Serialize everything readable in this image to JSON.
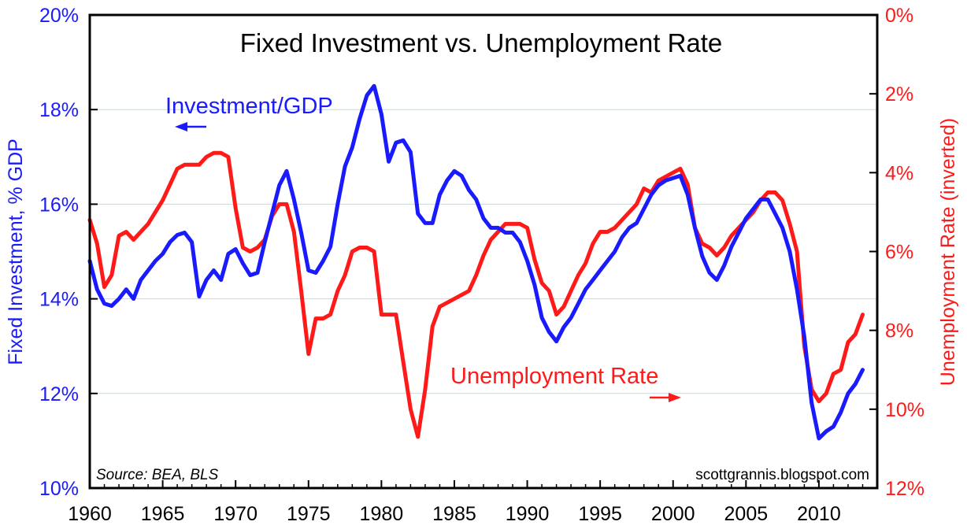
{
  "chart_data": {
    "type": "line",
    "title": "Fixed Investment vs. Unemployment Rate",
    "ylabel_left": "Fixed Investment, % GDP",
    "ylabel_right": "Unemployment Rate (inverted)",
    "xlabel": "",
    "source": "Source: BEA, BLS",
    "credit": "scottgrannis.blogspot.com",
    "xlim": [
      1960,
      2014
    ],
    "ylim_left": [
      10,
      20
    ],
    "ylim_right": [
      0,
      12
    ],
    "right_axis_inverted": true,
    "grid": true,
    "x_ticks": [
      "1960",
      "1965",
      "1970",
      "1975",
      "1980",
      "1985",
      "1990",
      "1995",
      "2000",
      "2005",
      "2010"
    ],
    "x_tick_values": [
      1960,
      1965,
      1970,
      1975,
      1980,
      1985,
      1990,
      1995,
      2000,
      2005,
      2010
    ],
    "y_ticks_left": [
      "10%",
      "12%",
      "14%",
      "16%",
      "18%",
      "20%"
    ],
    "y_tick_values_left": [
      10,
      12,
      14,
      16,
      18,
      20
    ],
    "y_ticks_right": [
      "0%",
      "2%",
      "4%",
      "6%",
      "8%",
      "10%",
      "12%"
    ],
    "y_tick_values_right": [
      0,
      2,
      4,
      6,
      8,
      10,
      12
    ],
    "colors": {
      "investment": "#1a1aff",
      "unemployment": "#ff1a1a",
      "grid": "#b8dde6",
      "frame": "#000000"
    },
    "series": [
      {
        "name": "Investment/GDP",
        "label": "Investment/GDP",
        "axis": "left",
        "arrow": "left",
        "x": [
          1960,
          1960.5,
          1961,
          1961.5,
          1962,
          1962.5,
          1963,
          1963.5,
          1964,
          1964.5,
          1965,
          1965.5,
          1966,
          1966.5,
          1967,
          1967.5,
          1968,
          1968.5,
          1969,
          1969.5,
          1970,
          1970.5,
          1971,
          1971.5,
          1972,
          1972.5,
          1973,
          1973.5,
          1974,
          1974.5,
          1975,
          1975.5,
          1976,
          1976.5,
          1977,
          1977.5,
          1978,
          1978.5,
          1979,
          1979.5,
          1980,
          1980.5,
          1981,
          1981.5,
          1982,
          1982.5,
          1983,
          1983.5,
          1984,
          1984.5,
          1985,
          1985.5,
          1986,
          1986.5,
          1987,
          1987.5,
          1988,
          1988.5,
          1989,
          1989.5,
          1990,
          1990.5,
          1991,
          1991.5,
          1992,
          1992.5,
          1993,
          1993.5,
          1994,
          1994.5,
          1995,
          1995.5,
          1996,
          1996.5,
          1997,
          1997.5,
          1998,
          1998.5,
          1999,
          1999.5,
          2000,
          2000.5,
          2001,
          2001.5,
          2002,
          2002.5,
          2003,
          2003.5,
          2004,
          2004.5,
          2005,
          2005.5,
          2006,
          2006.5,
          2007,
          2007.5,
          2008,
          2008.5,
          2009,
          2009.5,
          2010,
          2010.5,
          2011,
          2011.5,
          2012,
          2012.5,
          2013
        ],
        "values": [
          14.8,
          14.2,
          13.9,
          13.85,
          14.0,
          14.2,
          14.0,
          14.4,
          14.6,
          14.8,
          14.95,
          15.2,
          15.35,
          15.4,
          15.2,
          14.05,
          14.4,
          14.6,
          14.4,
          14.95,
          15.05,
          14.75,
          14.5,
          14.55,
          15.2,
          15.8,
          16.4,
          16.7,
          16.1,
          15.4,
          14.6,
          14.55,
          14.8,
          15.1,
          16.0,
          16.8,
          17.2,
          17.8,
          18.3,
          18.5,
          17.9,
          16.9,
          17.3,
          17.35,
          17.1,
          15.8,
          15.6,
          15.6,
          16.2,
          16.5,
          16.7,
          16.6,
          16.3,
          16.1,
          15.7,
          15.5,
          15.5,
          15.4,
          15.4,
          15.2,
          14.8,
          14.3,
          13.6,
          13.3,
          13.1,
          13.4,
          13.6,
          13.9,
          14.2,
          14.4,
          14.6,
          14.8,
          15.0,
          15.3,
          15.5,
          15.6,
          15.9,
          16.2,
          16.4,
          16.5,
          16.55,
          16.6,
          16.2,
          15.5,
          14.9,
          14.55,
          14.4,
          14.7,
          15.1,
          15.4,
          15.7,
          15.9,
          16.1,
          16.1,
          15.8,
          15.5,
          15.0,
          14.2,
          13.2,
          11.8,
          11.05,
          11.2,
          11.3,
          11.6,
          12.0,
          12.2,
          12.5
        ]
      },
      {
        "name": "Unemployment Rate",
        "label": "Unemployment Rate",
        "axis": "right",
        "arrow": "right",
        "x": [
          1960,
          1960.5,
          1961,
          1961.5,
          1962,
          1962.5,
          1963,
          1963.5,
          1964,
          1964.5,
          1965,
          1965.5,
          1966,
          1966.5,
          1967,
          1967.5,
          1968,
          1968.5,
          1969,
          1969.5,
          1970,
          1970.5,
          1971,
          1971.5,
          1972,
          1972.5,
          1973,
          1973.5,
          1974,
          1974.5,
          1975,
          1975.5,
          1976,
          1976.5,
          1977,
          1977.5,
          1978,
          1978.5,
          1979,
          1979.5,
          1980,
          1980.5,
          1981,
          1981.5,
          1982,
          1982.5,
          1983,
          1983.5,
          1984,
          1984.5,
          1985,
          1985.5,
          1986,
          1986.5,
          1987,
          1987.5,
          1988,
          1988.5,
          1989,
          1989.5,
          1990,
          1990.5,
          1991,
          1991.5,
          1992,
          1992.5,
          1993,
          1993.5,
          1994,
          1994.5,
          1995,
          1995.5,
          1996,
          1996.5,
          1997,
          1997.5,
          1998,
          1998.5,
          1999,
          1999.5,
          2000,
          2000.5,
          2001,
          2001.5,
          2002,
          2002.5,
          2003,
          2003.5,
          2004,
          2004.5,
          2005,
          2005.5,
          2006,
          2006.5,
          2007,
          2007.5,
          2008,
          2008.5,
          2009,
          2009.5,
          2010,
          2010.5,
          2011,
          2011.5,
          2012,
          2012.5,
          2013
        ],
        "values": [
          5.2,
          5.8,
          6.9,
          6.6,
          5.6,
          5.5,
          5.7,
          5.5,
          5.3,
          5.0,
          4.7,
          4.3,
          3.9,
          3.8,
          3.8,
          3.8,
          3.6,
          3.5,
          3.5,
          3.6,
          4.9,
          5.9,
          6.0,
          5.9,
          5.7,
          5.1,
          4.8,
          4.8,
          5.5,
          7.0,
          8.6,
          7.7,
          7.7,
          7.6,
          7.0,
          6.6,
          6.0,
          5.9,
          5.9,
          6.0,
          7.6,
          7.6,
          7.6,
          8.8,
          10.0,
          10.7,
          9.5,
          7.9,
          7.4,
          7.3,
          7.2,
          7.1,
          7.0,
          6.6,
          6.1,
          5.7,
          5.5,
          5.3,
          5.3,
          5.3,
          5.4,
          6.2,
          6.8,
          7.0,
          7.6,
          7.4,
          7.0,
          6.6,
          6.3,
          5.8,
          5.5,
          5.5,
          5.4,
          5.2,
          5.0,
          4.8,
          4.4,
          4.5,
          4.2,
          4.1,
          4.0,
          3.9,
          4.3,
          5.4,
          5.8,
          5.9,
          6.1,
          5.9,
          5.6,
          5.4,
          5.2,
          5.0,
          4.7,
          4.5,
          4.5,
          4.7,
          5.3,
          6.0,
          8.4,
          9.5,
          9.8,
          9.6,
          9.1,
          9.0,
          8.3,
          8.1,
          7.6
        ]
      }
    ]
  }
}
